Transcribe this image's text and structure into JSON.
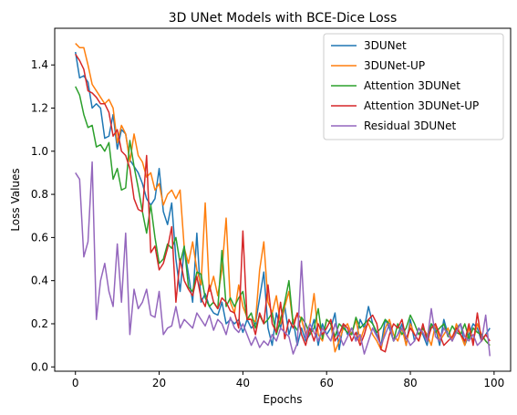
{
  "chart_data": {
    "type": "line",
    "title": "3D UNet Models with BCE-Dice Loss",
    "xlabel": "Epochs",
    "ylabel": "Loss Values",
    "xlim": [
      -4.95,
      103.95
    ],
    "ylim": [
      -0.02,
      1.57
    ],
    "xticks": [
      0,
      20,
      40,
      60,
      80,
      100
    ],
    "yticks": [
      0.0,
      0.2,
      0.4,
      0.6,
      0.8,
      1.0,
      1.2,
      1.4
    ],
    "legend_position": "top-right",
    "grid": false,
    "series": [
      {
        "name": "3DUNet",
        "color": "#1f77b4",
        "values": [
          1.46,
          1.34,
          1.35,
          1.32,
          1.2,
          1.22,
          1.2,
          1.06,
          1.07,
          1.17,
          1.01,
          1.1,
          1.08,
          0.96,
          0.93,
          0.9,
          0.85,
          0.78,
          0.75,
          0.78,
          0.92,
          0.72,
          0.66,
          0.76,
          0.5,
          0.35,
          0.55,
          0.43,
          0.3,
          0.62,
          0.3,
          0.34,
          0.28,
          0.25,
          0.24,
          0.3,
          0.2,
          0.22,
          0.2,
          0.22,
          0.16,
          0.22,
          0.18,
          0.2,
          0.32,
          0.44,
          0.18,
          0.1,
          0.25,
          0.18,
          0.28,
          0.15,
          0.22,
          0.1,
          0.18,
          0.12,
          0.15,
          0.22,
          0.1,
          0.2,
          0.15,
          0.18,
          0.25,
          0.08,
          0.2,
          0.15,
          0.18,
          0.12,
          0.22,
          0.18,
          0.28,
          0.2,
          0.15,
          0.1,
          0.22,
          0.18,
          0.12,
          0.15,
          0.2,
          0.1,
          0.22,
          0.12,
          0.18,
          0.15,
          0.1,
          0.2,
          0.18,
          0.1,
          0.22,
          0.15,
          0.12,
          0.18,
          0.2,
          0.1,
          0.15,
          0.2,
          0.18,
          0.12,
          0.15,
          0.18
        ]
      },
      {
        "name": "3DUNet-UP",
        "color": "#ff7f0e",
        "values": [
          1.5,
          1.48,
          1.48,
          1.4,
          1.31,
          1.28,
          1.25,
          1.22,
          1.24,
          1.2,
          1.04,
          1.12,
          1.08,
          0.95,
          1.08,
          0.98,
          0.95,
          0.88,
          0.9,
          0.82,
          0.85,
          0.75,
          0.8,
          0.82,
          0.78,
          0.82,
          0.55,
          0.48,
          0.58,
          0.45,
          0.38,
          0.76,
          0.35,
          0.42,
          0.33,
          0.45,
          0.69,
          0.3,
          0.25,
          0.38,
          0.28,
          0.23,
          0.22,
          0.21,
          0.45,
          0.58,
          0.3,
          0.25,
          0.33,
          0.2,
          0.28,
          0.35,
          0.2,
          0.25,
          0.22,
          0.15,
          0.2,
          0.34,
          0.15,
          0.12,
          0.22,
          0.2,
          0.07,
          0.12,
          0.18,
          0.2,
          0.15,
          0.22,
          0.12,
          0.18,
          0.2,
          0.15,
          0.12,
          0.08,
          0.18,
          0.22,
          0.15,
          0.12,
          0.18,
          0.1,
          0.2,
          0.15,
          0.12,
          0.18,
          0.15,
          0.1,
          0.2,
          0.12,
          0.15,
          0.18,
          0.12,
          0.2,
          0.15,
          0.1,
          0.18,
          0.12,
          0.2,
          0.15,
          0.12,
          0.1
        ]
      },
      {
        "name": "Attention 3DUNet",
        "color": "#2ca02c",
        "values": [
          1.3,
          1.26,
          1.17,
          1.11,
          1.12,
          1.02,
          1.03,
          1.0,
          1.04,
          0.87,
          0.92,
          0.82,
          0.83,
          1.05,
          0.93,
          0.83,
          0.72,
          0.62,
          0.75,
          0.6,
          0.48,
          0.5,
          0.57,
          0.55,
          0.6,
          0.48,
          0.56,
          0.37,
          0.35,
          0.44,
          0.43,
          0.32,
          0.28,
          0.3,
          0.27,
          0.54,
          0.28,
          0.32,
          0.28,
          0.32,
          0.35,
          0.22,
          0.25,
          0.18,
          0.24,
          0.2,
          0.22,
          0.25,
          0.15,
          0.22,
          0.3,
          0.4,
          0.2,
          0.17,
          0.23,
          0.2,
          0.15,
          0.18,
          0.27,
          0.13,
          0.22,
          0.2,
          0.14,
          0.2,
          0.18,
          0.16,
          0.15,
          0.23,
          0.18,
          0.2,
          0.22,
          0.2,
          0.16,
          0.18,
          0.22,
          0.2,
          0.12,
          0.2,
          0.15,
          0.18,
          0.24,
          0.2,
          0.15,
          0.18,
          0.14,
          0.2,
          0.16,
          0.18,
          0.2,
          0.14,
          0.19,
          0.16,
          0.15,
          0.2,
          0.13,
          0.18,
          0.16,
          0.15,
          0.12,
          0.1
        ]
      },
      {
        "name": "Attention 3DUNet-UP",
        "color": "#d62728",
        "values": [
          1.45,
          1.42,
          1.38,
          1.28,
          1.27,
          1.25,
          1.22,
          1.22,
          1.18,
          1.07,
          1.1,
          1.0,
          0.98,
          0.92,
          0.78,
          0.73,
          0.72,
          0.98,
          0.53,
          0.56,
          0.45,
          0.48,
          0.55,
          0.65,
          0.3,
          0.5,
          0.4,
          0.36,
          0.33,
          0.42,
          0.32,
          0.28,
          0.38,
          0.3,
          0.27,
          0.32,
          0.3,
          0.26,
          0.25,
          0.18,
          0.63,
          0.22,
          0.22,
          0.15,
          0.25,
          0.2,
          0.38,
          0.2,
          0.16,
          0.3,
          0.13,
          0.22,
          0.18,
          0.25,
          0.15,
          0.1,
          0.18,
          0.12,
          0.2,
          0.15,
          0.18,
          0.22,
          0.12,
          0.15,
          0.2,
          0.18,
          0.12,
          0.16,
          0.1,
          0.15,
          0.22,
          0.24,
          0.2,
          0.08,
          0.07,
          0.15,
          0.2,
          0.18,
          0.22,
          0.13,
          0.18,
          0.15,
          0.12,
          0.2,
          0.12,
          0.18,
          0.2,
          0.15,
          0.1,
          0.12,
          0.14,
          0.18,
          0.15,
          0.12,
          0.2,
          0.1,
          0.25,
          0.12,
          0.15,
          0.12
        ]
      },
      {
        "name": "Residual 3DUNet",
        "color": "#9467bd",
        "values": [
          0.9,
          0.87,
          0.51,
          0.58,
          0.95,
          0.22,
          0.4,
          0.48,
          0.35,
          0.28,
          0.57,
          0.3,
          0.62,
          0.15,
          0.36,
          0.27,
          0.3,
          0.36,
          0.24,
          0.23,
          0.35,
          0.15,
          0.18,
          0.19,
          0.28,
          0.18,
          0.22,
          0.2,
          0.18,
          0.25,
          0.22,
          0.19,
          0.24,
          0.17,
          0.22,
          0.2,
          0.15,
          0.23,
          0.18,
          0.16,
          0.2,
          0.15,
          0.1,
          0.14,
          0.09,
          0.12,
          0.1,
          0.15,
          0.12,
          0.18,
          0.16,
          0.14,
          0.06,
          0.11,
          0.49,
          0.13,
          0.2,
          0.16,
          0.12,
          0.18,
          0.15,
          0.12,
          0.2,
          0.15,
          0.1,
          0.14,
          0.18,
          0.12,
          0.15,
          0.06,
          0.12,
          0.18,
          0.14,
          0.1,
          0.15,
          0.2,
          0.12,
          0.15,
          0.18,
          0.14,
          0.1,
          0.12,
          0.18,
          0.16,
          0.12,
          0.27,
          0.14,
          0.12,
          0.18,
          0.15,
          0.12,
          0.16,
          0.2,
          0.14,
          0.12,
          0.15,
          0.1,
          0.12,
          0.24,
          0.05
        ]
      }
    ]
  }
}
